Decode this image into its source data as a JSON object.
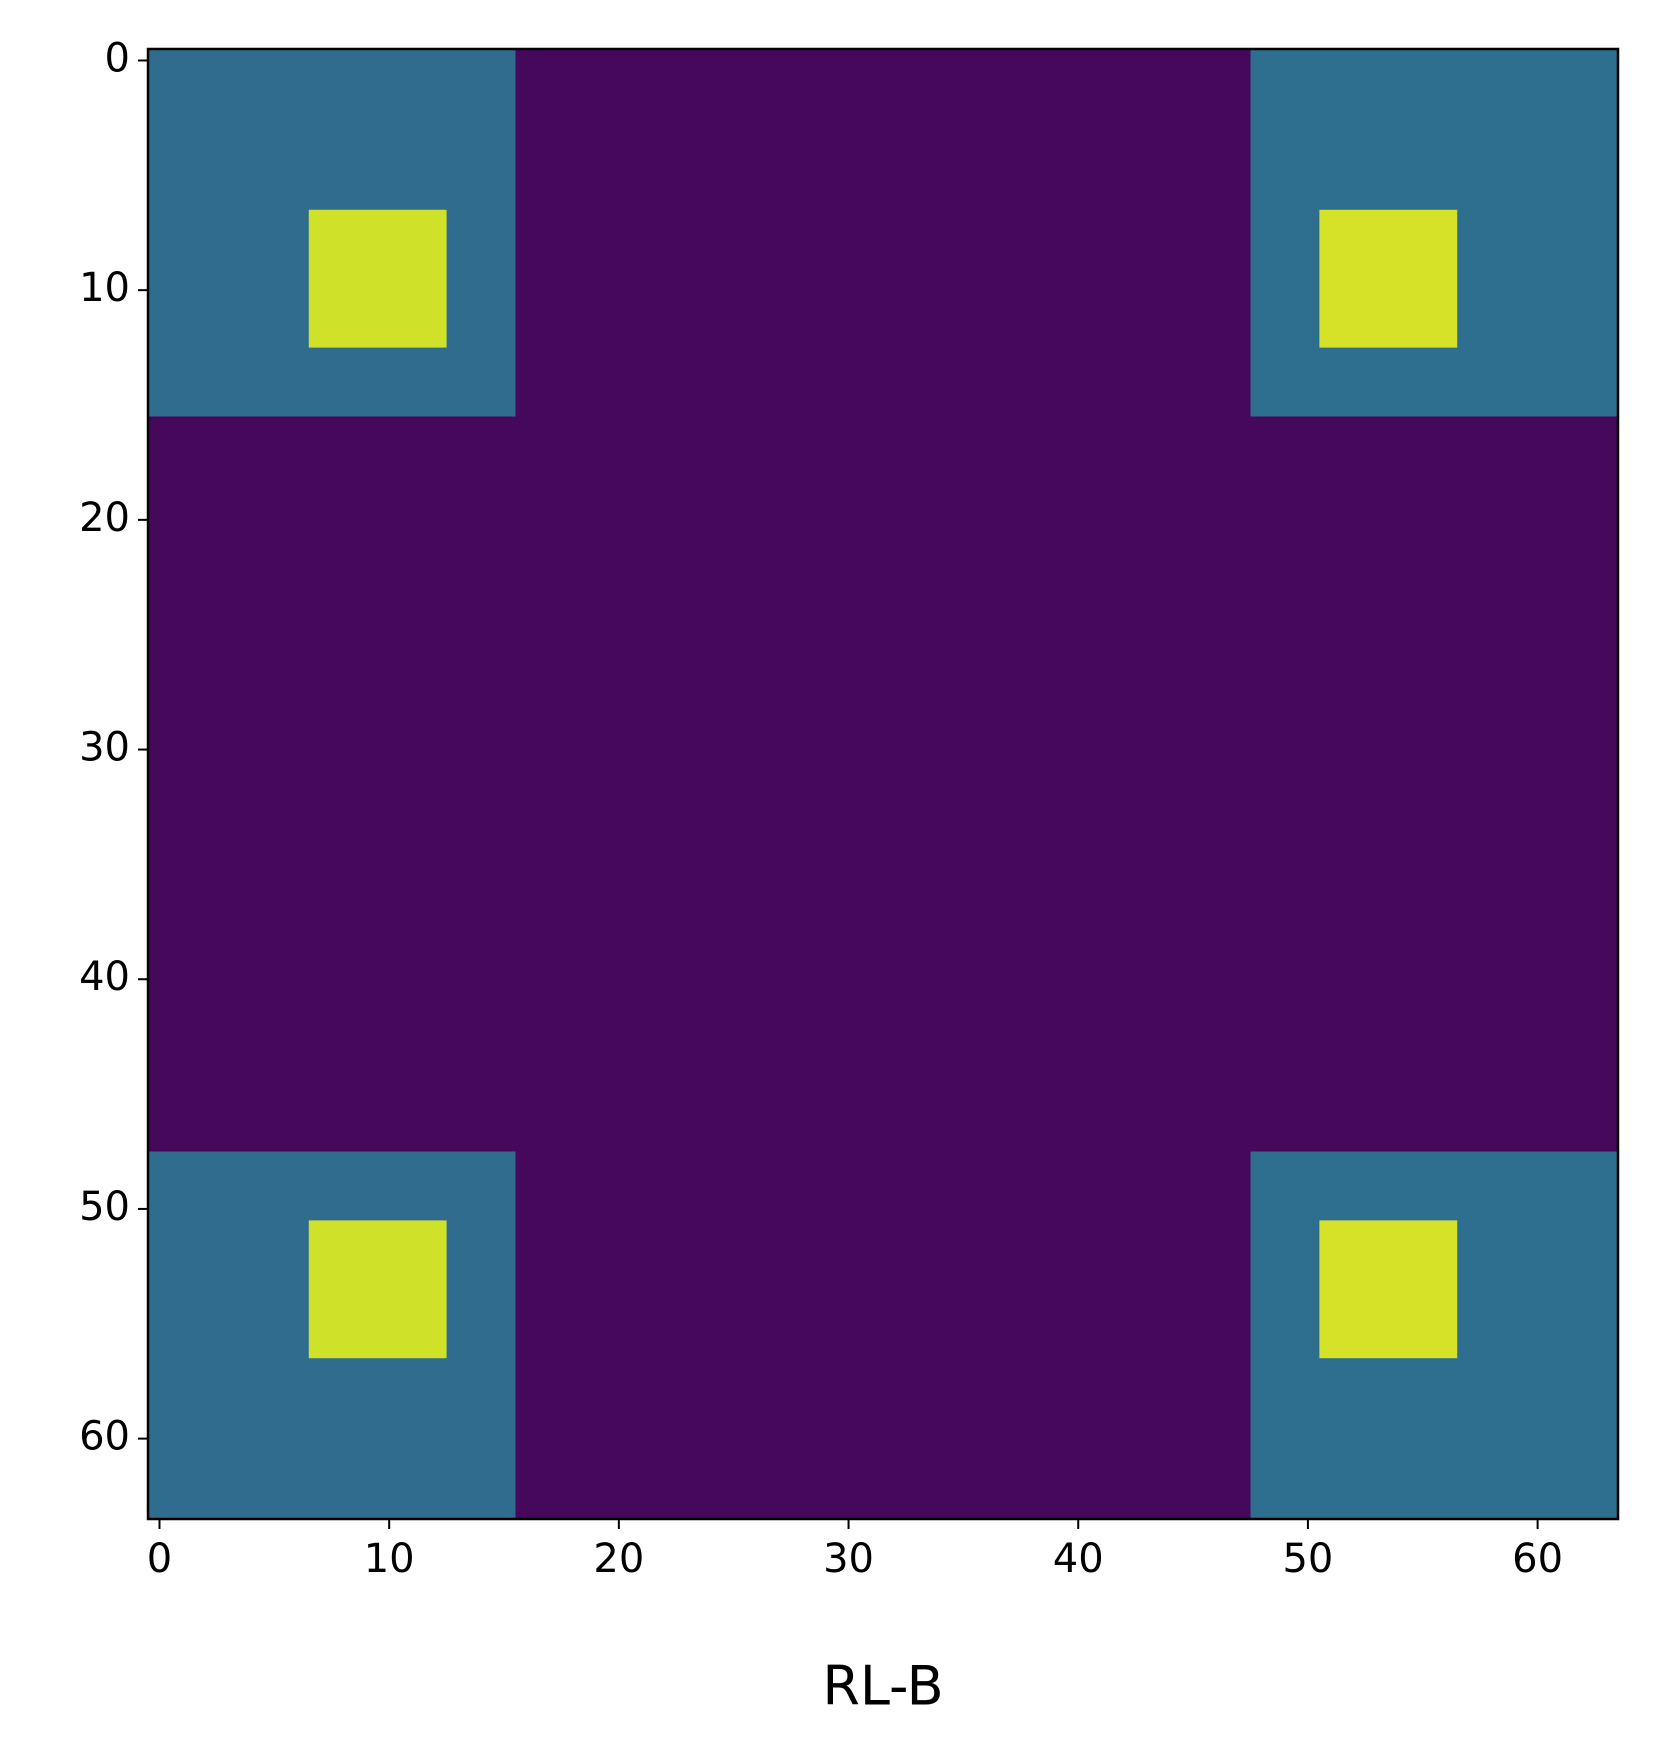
{
  "chart_data": {
    "type": "heatmap",
    "colormap": "viridis",
    "clim": [
      0,
      1
    ],
    "xlabel": "RL-B",
    "xlim": [
      -0.5,
      63.5
    ],
    "ylim": [
      63.5,
      -0.5
    ],
    "xticks": [
      0,
      10,
      20,
      30,
      40,
      50,
      60
    ],
    "yticks": [
      0,
      10,
      20,
      30,
      40,
      50,
      60
    ],
    "cells": [
      {
        "x": [
          0,
          63
        ],
        "y": [
          0,
          63
        ],
        "value": 0.02
      },
      {
        "x": [
          0,
          15
        ],
        "y": [
          0,
          15
        ],
        "value": 0.35
      },
      {
        "x": [
          48,
          63
        ],
        "y": [
          0,
          15
        ],
        "value": 0.36
      },
      {
        "x": [
          0,
          15
        ],
        "y": [
          48,
          63
        ],
        "value": 0.35
      },
      {
        "x": [
          48,
          63
        ],
        "y": [
          48,
          63
        ],
        "value": 0.36
      },
      {
        "x": [
          7,
          12
        ],
        "y": [
          7,
          12
        ],
        "value": 0.93
      },
      {
        "x": [
          51,
          56
        ],
        "y": [
          7,
          12
        ],
        "value": 0.94
      },
      {
        "x": [
          7,
          12
        ],
        "y": [
          51,
          56
        ],
        "value": 0.93
      },
      {
        "x": [
          51,
          56
        ],
        "y": [
          51,
          56
        ],
        "value": 0.94
      }
    ]
  }
}
